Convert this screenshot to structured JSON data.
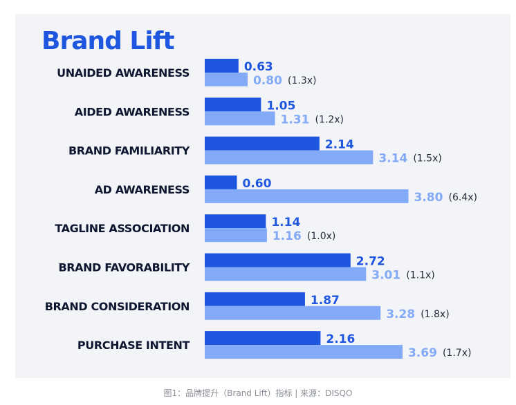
{
  "chart_data": {
    "type": "bar",
    "title": "Brand Lift",
    "categories": [
      "UNAIDED AWARENESS",
      "AIDED AWARENESS",
      "BRAND FAMILIARITY",
      "AD AWARENESS",
      "TAGLINE ASSOCIATION",
      "BRAND FAVORABILITY",
      "BRAND CONSIDERATION",
      "PURCHASE INTENT"
    ],
    "series": [
      {
        "name": "Series A",
        "values": [
          0.63,
          1.05,
          2.14,
          0.6,
          1.14,
          2.72,
          1.87,
          2.16
        ]
      },
      {
        "name": "Series B",
        "values": [
          0.8,
          1.31,
          3.14,
          3.8,
          1.16,
          3.01,
          3.28,
          3.69
        ]
      }
    ],
    "labels_a": [
      "0.63",
      "1.05",
      "2.14",
      "0.60",
      "1.14",
      "2.72",
      "1.87",
      "2.16"
    ],
    "labels_b": [
      "0.80",
      "1.31",
      "3.14",
      "3.80",
      "1.16",
      "3.01",
      "3.28",
      "3.69"
    ],
    "multipliers": [
      "(1.3x)",
      "(1.2x)",
      "(1.5x)",
      "(6.4x)",
      "(1.0x)",
      "(1.1x)",
      "(1.8x)",
      "(1.7x)"
    ],
    "xlim": [
      0,
      3.8
    ],
    "colors": {
      "series_a": "#1f56e0",
      "series_b": "#83aaf7"
    }
  },
  "caption": "图1：品牌提升（Brand Lift）指标 | 来源：DISQO"
}
